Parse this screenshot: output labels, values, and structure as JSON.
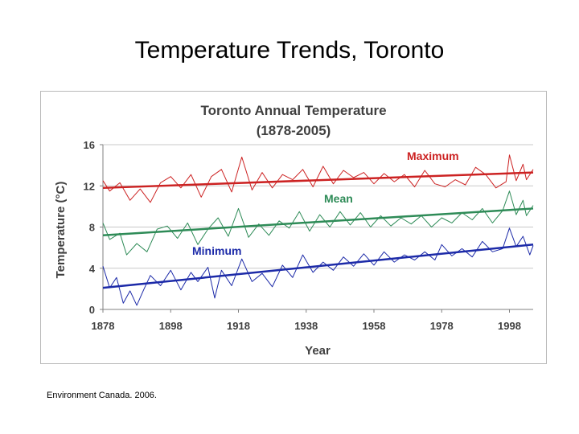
{
  "slide": {
    "title": "Temperature Trends, Toronto",
    "source": "Environment Canada. 2006."
  },
  "chart_data": {
    "type": "line",
    "title": "Toronto Annual Temperature",
    "subtitle": "(1878-2005)",
    "xlabel": "Year",
    "ylabel": "Temperature (°C)",
    "xlim": [
      1878,
      2005
    ],
    "ylim": [
      0,
      16
    ],
    "xticks": [
      "1878",
      "1898",
      "1918",
      "1938",
      "1958",
      "1978",
      "1998"
    ],
    "yticks": [
      "0",
      "4",
      "8",
      "12",
      "16"
    ],
    "grid": true,
    "series": [
      {
        "name": "Maximum",
        "color": "#cc2222",
        "trend": [
          11.8,
          13.3
        ],
        "anchors": [
          [
            1878,
            12.5
          ],
          [
            1880,
            11.5
          ],
          [
            1883,
            12.3
          ],
          [
            1886,
            10.6
          ],
          [
            1889,
            11.7
          ],
          [
            1892,
            10.4
          ],
          [
            1895,
            12.3
          ],
          [
            1898,
            12.9
          ],
          [
            1901,
            11.8
          ],
          [
            1904,
            13.1
          ],
          [
            1907,
            10.9
          ],
          [
            1910,
            12.9
          ],
          [
            1913,
            13.6
          ],
          [
            1916,
            11.4
          ],
          [
            1919,
            14.8
          ],
          [
            1922,
            11.6
          ],
          [
            1925,
            13.3
          ],
          [
            1928,
            11.8
          ],
          [
            1931,
            13.1
          ],
          [
            1934,
            12.6
          ],
          [
            1937,
            13.6
          ],
          [
            1940,
            11.9
          ],
          [
            1943,
            13.9
          ],
          [
            1946,
            12.2
          ],
          [
            1949,
            13.5
          ],
          [
            1952,
            12.8
          ],
          [
            1955,
            13.3
          ],
          [
            1958,
            12.2
          ],
          [
            1961,
            13.2
          ],
          [
            1964,
            12.4
          ],
          [
            1967,
            13.1
          ],
          [
            1970,
            11.9
          ],
          [
            1973,
            13.5
          ],
          [
            1976,
            12.2
          ],
          [
            1979,
            11.9
          ],
          [
            1982,
            12.6
          ],
          [
            1985,
            12.1
          ],
          [
            1988,
            13.8
          ],
          [
            1991,
            13.1
          ],
          [
            1994,
            11.8
          ],
          [
            1997,
            12.4
          ],
          [
            1998,
            15.0
          ],
          [
            2000,
            12.5
          ],
          [
            2002,
            14.1
          ],
          [
            2003,
            12.6
          ],
          [
            2005,
            13.6
          ]
        ]
      },
      {
        "name": "Mean",
        "color": "#2e8b57",
        "trend": [
          7.2,
          9.8
        ],
        "anchors": [
          [
            1878,
            8.4
          ],
          [
            1880,
            6.8
          ],
          [
            1883,
            7.4
          ],
          [
            1885,
            5.3
          ],
          [
            1888,
            6.4
          ],
          [
            1891,
            5.6
          ],
          [
            1894,
            7.8
          ],
          [
            1897,
            8.1
          ],
          [
            1900,
            6.9
          ],
          [
            1903,
            8.4
          ],
          [
            1906,
            6.3
          ],
          [
            1909,
            7.8
          ],
          [
            1912,
            8.9
          ],
          [
            1915,
            7.1
          ],
          [
            1918,
            9.8
          ],
          [
            1921,
            7.0
          ],
          [
            1924,
            8.3
          ],
          [
            1927,
            7.2
          ],
          [
            1930,
            8.6
          ],
          [
            1933,
            7.9
          ],
          [
            1936,
            9.5
          ],
          [
            1939,
            7.6
          ],
          [
            1942,
            9.2
          ],
          [
            1945,
            8.0
          ],
          [
            1948,
            9.5
          ],
          [
            1951,
            8.2
          ],
          [
            1954,
            9.4
          ],
          [
            1957,
            8.0
          ],
          [
            1960,
            9.1
          ],
          [
            1963,
            8.1
          ],
          [
            1966,
            8.9
          ],
          [
            1969,
            8.3
          ],
          [
            1972,
            9.1
          ],
          [
            1975,
            8.0
          ],
          [
            1978,
            8.9
          ],
          [
            1981,
            8.4
          ],
          [
            1984,
            9.4
          ],
          [
            1987,
            8.7
          ],
          [
            1990,
            9.8
          ],
          [
            1993,
            8.4
          ],
          [
            1996,
            9.6
          ],
          [
            1998,
            11.5
          ],
          [
            2000,
            9.2
          ],
          [
            2002,
            10.6
          ],
          [
            2003,
            9.1
          ],
          [
            2005,
            10.1
          ]
        ]
      },
      {
        "name": "Minimum",
        "color": "#1c2aa8",
        "trend": [
          2.1,
          6.3
        ],
        "anchors": [
          [
            1878,
            4.2
          ],
          [
            1880,
            2.1
          ],
          [
            1882,
            3.1
          ],
          [
            1884,
            0.6
          ],
          [
            1886,
            1.8
          ],
          [
            1888,
            0.4
          ],
          [
            1890,
            1.9
          ],
          [
            1892,
            3.3
          ],
          [
            1895,
            2.3
          ],
          [
            1898,
            3.8
          ],
          [
            1901,
            1.9
          ],
          [
            1904,
            3.6
          ],
          [
            1906,
            2.7
          ],
          [
            1909,
            4.1
          ],
          [
            1911,
            1.1
          ],
          [
            1913,
            3.8
          ],
          [
            1916,
            2.3
          ],
          [
            1919,
            4.9
          ],
          [
            1922,
            2.7
          ],
          [
            1925,
            3.5
          ],
          [
            1928,
            2.2
          ],
          [
            1931,
            4.3
          ],
          [
            1934,
            3.1
          ],
          [
            1937,
            5.3
          ],
          [
            1940,
            3.6
          ],
          [
            1943,
            4.6
          ],
          [
            1946,
            3.8
          ],
          [
            1949,
            5.1
          ],
          [
            1952,
            4.2
          ],
          [
            1955,
            5.4
          ],
          [
            1958,
            4.3
          ],
          [
            1961,
            5.6
          ],
          [
            1964,
            4.6
          ],
          [
            1967,
            5.3
          ],
          [
            1970,
            4.8
          ],
          [
            1973,
            5.6
          ],
          [
            1976,
            4.8
          ],
          [
            1978,
            6.3
          ],
          [
            1981,
            5.2
          ],
          [
            1984,
            5.9
          ],
          [
            1987,
            5.1
          ],
          [
            1990,
            6.6
          ],
          [
            1993,
            5.6
          ],
          [
            1996,
            5.9
          ],
          [
            1998,
            7.9
          ],
          [
            2000,
            6.1
          ],
          [
            2002,
            7.1
          ],
          [
            2004,
            5.3
          ],
          [
            2005,
            6.2
          ]
        ]
      }
    ]
  }
}
